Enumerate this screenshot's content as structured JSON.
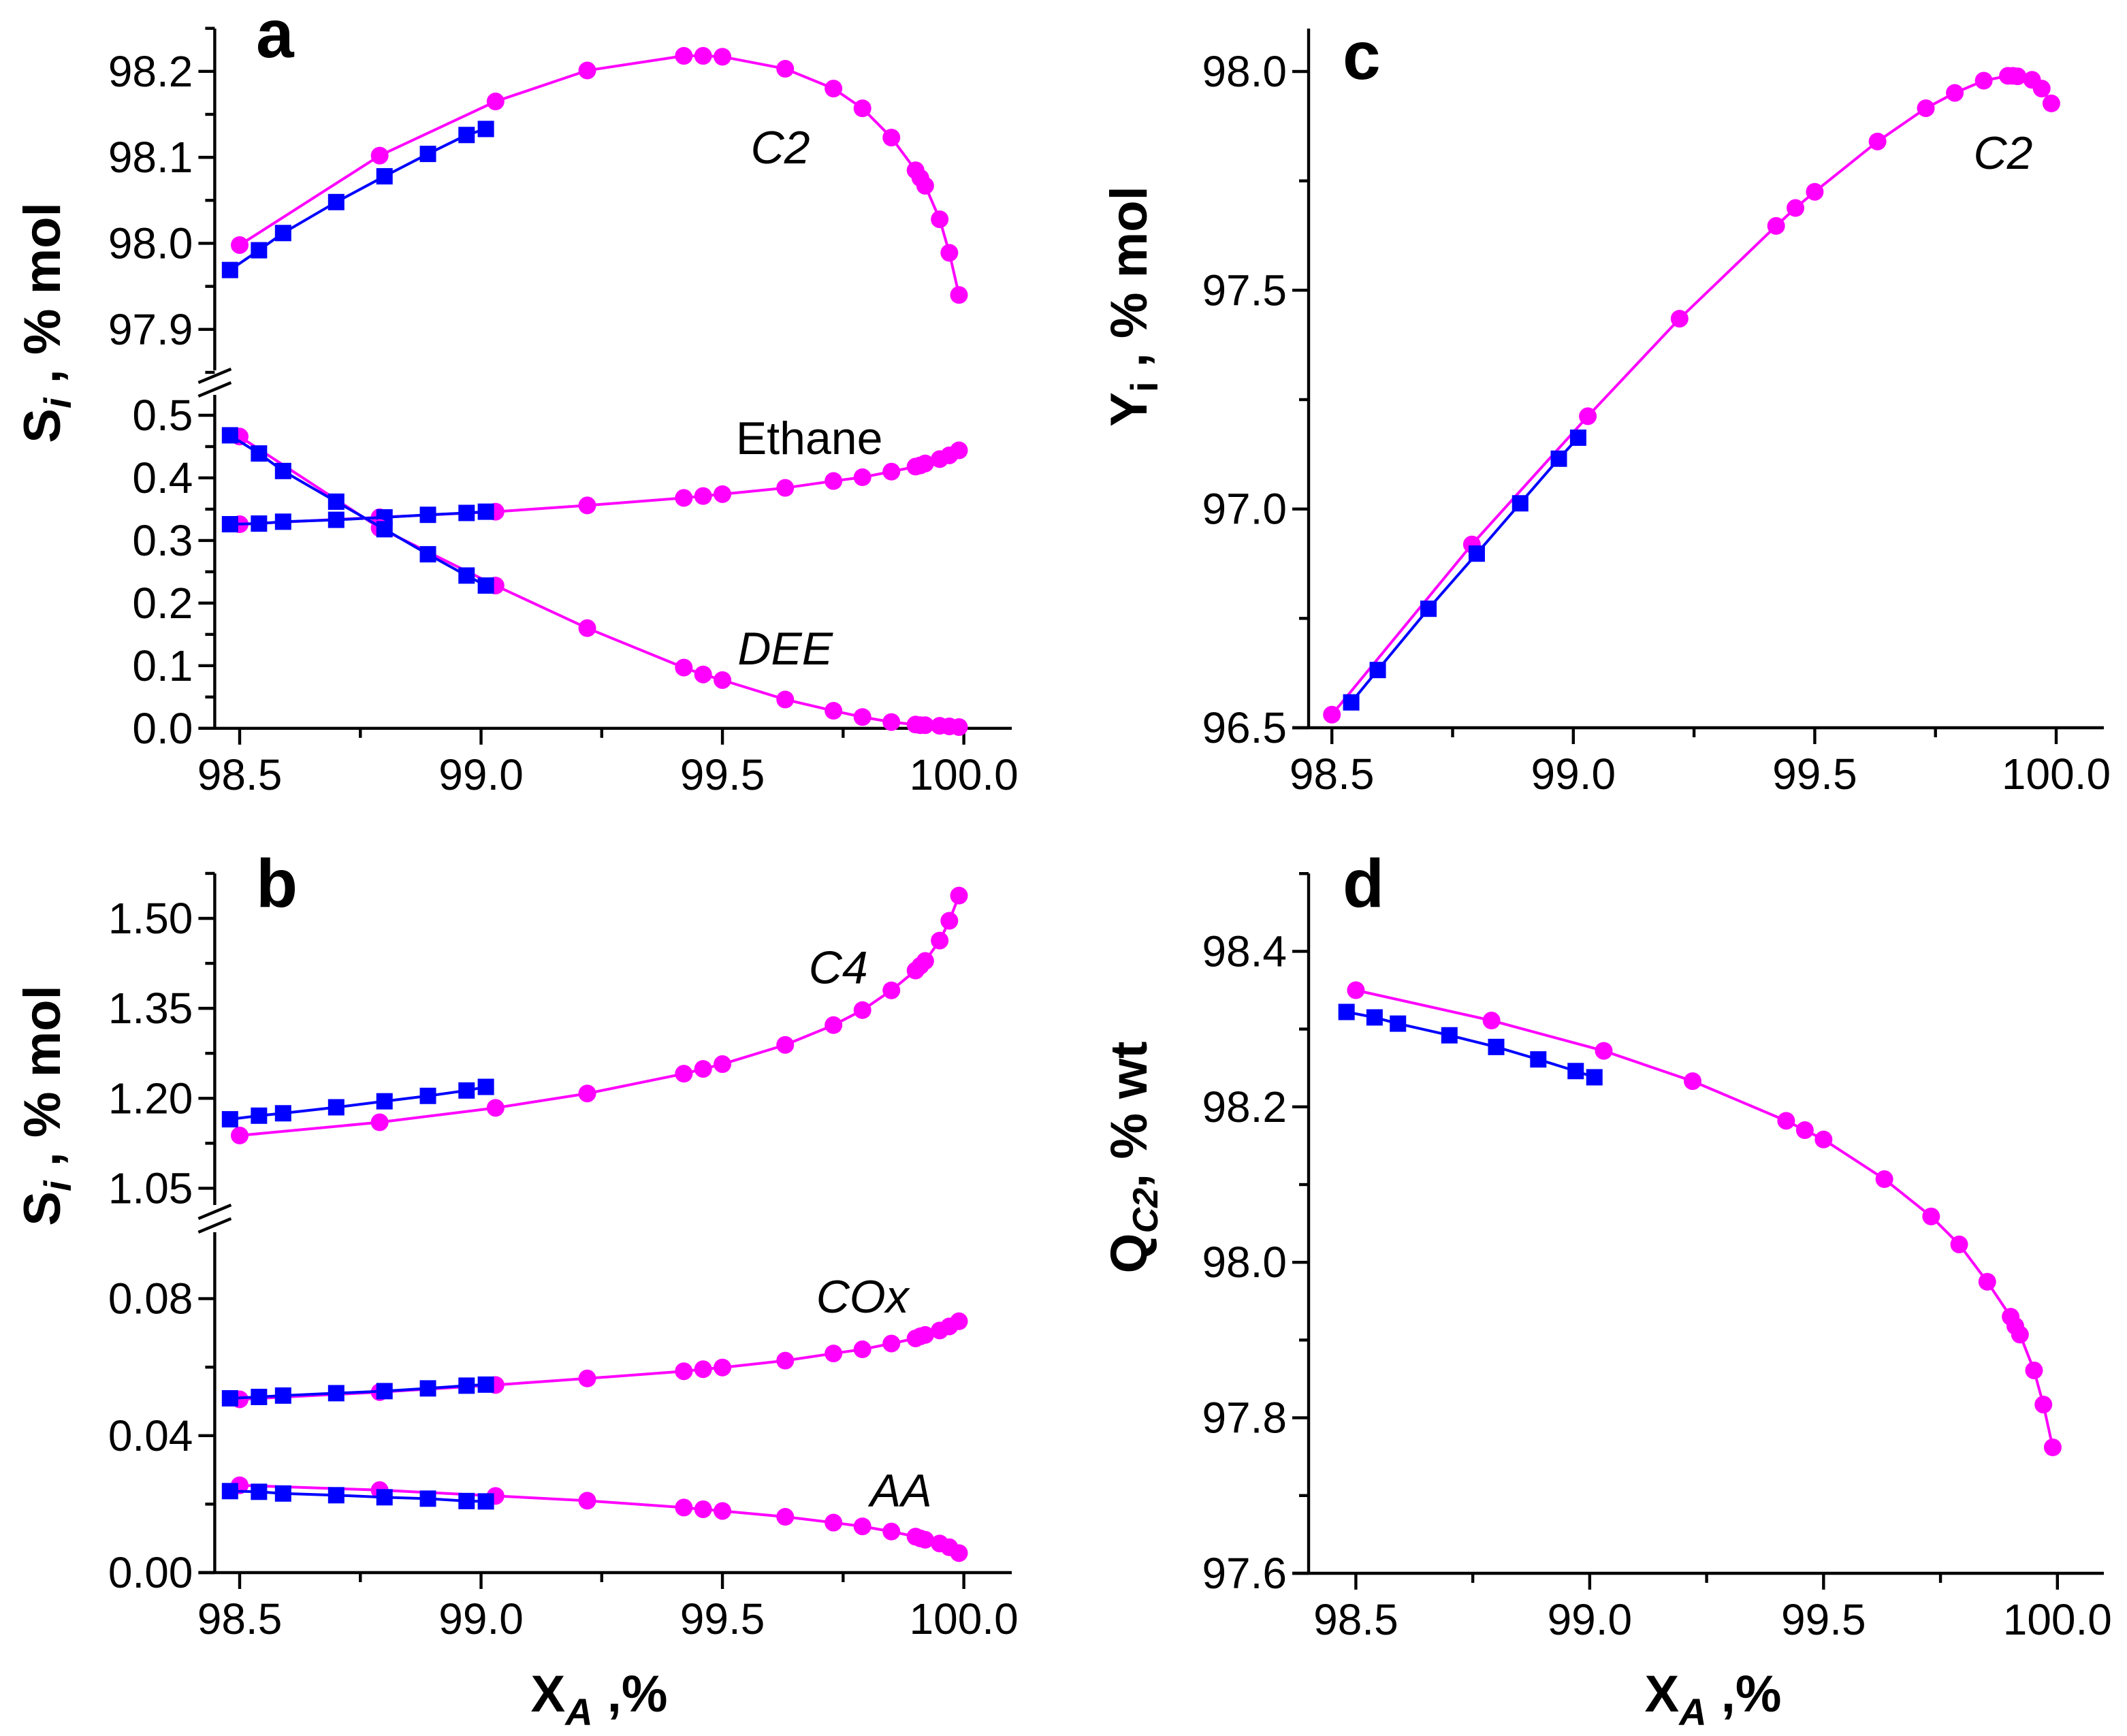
{
  "figure": {
    "panel_letters": [
      "a",
      "b",
      "c",
      "d"
    ],
    "ylabel_a": {
      "main": "S",
      "sub": "i",
      "rest": " , % mol"
    },
    "ylabel_b": {
      "main": "S",
      "sub": "i",
      "rest": " , % mol"
    },
    "ylabel_c": {
      "main": "Y",
      "sub": "i",
      "rest": " , % mol"
    },
    "ylabel_d": {
      "main": "Q",
      "sub": "C2",
      "rest": ", % wt"
    },
    "xlabel": {
      "main": "X",
      "sub": "A",
      "rest": " ,%"
    }
  },
  "colors": {
    "magenta": "#FF00FF",
    "blue": "#0000FF"
  },
  "chart_data": [
    {
      "panel": "a",
      "type": "line",
      "xlim": [
        98.45,
        100.05
      ],
      "xticks": [
        {
          "v": 98.5,
          "label": "98.5"
        },
        {
          "v": 99.0,
          "label": "99.0"
        },
        {
          "v": 99.5,
          "label": "99.5"
        },
        {
          "v": 100.0,
          "label": "100.0"
        }
      ],
      "xminor": [
        98.75,
        99.25,
        99.75
      ],
      "sections": [
        {
          "ylim": [
            97.855,
            98.25
          ],
          "yticks": [
            {
              "v": 98.2,
              "label": "98.2"
            },
            {
              "v": 98.1,
              "label": "98.1"
            },
            {
              "v": 98.0,
              "label": "98.0"
            },
            {
              "v": 97.9,
              "label": "97.9"
            }
          ],
          "yminor": [
            98.25,
            98.15,
            98.05,
            97.95,
            97.85
          ]
        },
        {
          "ylim": [
            0,
            0.533
          ],
          "yticks": [
            {
              "v": 0.5,
              "label": "0.5"
            },
            {
              "v": 0.4,
              "label": "0.4"
            },
            {
              "v": 0.3,
              "label": "0.3"
            },
            {
              "v": 0.2,
              "label": "0.2"
            },
            {
              "v": 0.1,
              "label": "0.1"
            },
            {
              "v": 0.0,
              "label": "0.0"
            }
          ],
          "yminor": [
            0.45,
            0.35,
            0.25,
            0.15,
            0.05
          ]
        }
      ],
      "series": [
        {
          "name": "C2 (circles)",
          "section": 0,
          "color": "#FF00FF",
          "marker": "circle",
          "x": [
            98.5,
            98.79,
            99.03,
            99.22,
            99.42,
            99.46,
            99.5,
            99.63,
            99.73,
            99.79,
            99.85,
            99.9,
            99.91,
            99.92,
            99.95,
            99.97,
            99.99
          ],
          "y": [
            97.998,
            98.102,
            98.165,
            98.201,
            98.218,
            98.218,
            98.217,
            98.203,
            98.18,
            98.157,
            98.123,
            98.085,
            98.076,
            98.067,
            98.028,
            97.989,
            97.94
          ]
        },
        {
          "name": "C2 (squares)",
          "section": 0,
          "color": "#0000FF",
          "marker": "square",
          "x": [
            98.48,
            98.54,
            98.59,
            98.7,
            98.8,
            98.89,
            98.97,
            99.01
          ],
          "y": [
            97.969,
            97.992,
            98.012,
            98.048,
            98.078,
            98.104,
            98.126,
            98.133
          ]
        },
        {
          "name": "Ethane (circles)",
          "section": 1,
          "color": "#FF00FF",
          "marker": "circle",
          "x": [
            98.5,
            98.79,
            99.03,
            99.22,
            99.42,
            99.46,
            99.5,
            99.63,
            99.73,
            99.79,
            99.85,
            99.9,
            99.91,
            99.92,
            99.95,
            99.97,
            99.99
          ],
          "y": [
            0.326,
            0.337,
            0.346,
            0.356,
            0.368,
            0.371,
            0.374,
            0.384,
            0.395,
            0.401,
            0.41,
            0.418,
            0.42,
            0.423,
            0.43,
            0.436,
            0.444
          ]
        },
        {
          "name": "Ethane (squares)",
          "section": 1,
          "color": "#0000FF",
          "marker": "square",
          "x": [
            98.48,
            98.54,
            98.59,
            98.7,
            98.8,
            98.89,
            98.97,
            99.01
          ],
          "y": [
            0.326,
            0.327,
            0.33,
            0.333,
            0.337,
            0.341,
            0.344,
            0.346
          ]
        },
        {
          "name": "DEE (circles)",
          "section": 1,
          "color": "#FF00FF",
          "marker": "circle",
          "x": [
            98.5,
            98.79,
            99.03,
            99.22,
            99.42,
            99.46,
            99.5,
            99.63,
            99.73,
            99.79,
            99.85,
            99.9,
            99.91,
            99.92,
            99.95,
            99.97,
            99.99
          ],
          "y": [
            0.466,
            0.32,
            0.228,
            0.16,
            0.097,
            0.086,
            0.077,
            0.046,
            0.028,
            0.018,
            0.01,
            0.006,
            0.005,
            0.005,
            0.004,
            0.003,
            0.002
          ]
        },
        {
          "name": "DEE (squares)",
          "section": 1,
          "color": "#0000FF",
          "marker": "square",
          "x": [
            98.48,
            98.54,
            98.59,
            98.7,
            98.8,
            98.89,
            98.97,
            99.01
          ],
          "y": [
            0.468,
            0.439,
            0.411,
            0.362,
            0.318,
            0.278,
            0.244,
            0.228
          ]
        }
      ],
      "annotations": [
        {
          "text": "C2",
          "italic": true,
          "section": 0,
          "x": 99.62,
          "y": 98.112
        },
        {
          "text": "Ethane",
          "italic": false,
          "section": 1,
          "x": 99.68,
          "y": 0.464
        },
        {
          "text": "DEE",
          "italic": true,
          "section": 1,
          "x": 99.63,
          "y": 0.128
        }
      ]
    },
    {
      "panel": "b",
      "type": "line",
      "xlim": [
        98.45,
        100.05
      ],
      "xticks": [
        {
          "v": 98.5,
          "label": "98.5"
        },
        {
          "v": 99.0,
          "label": "99.0"
        },
        {
          "v": 99.5,
          "label": "99.5"
        },
        {
          "v": 100.0,
          "label": "100.0"
        }
      ],
      "xminor": [
        98.75,
        99.25,
        99.75
      ],
      "sections": [
        {
          "ylim": [
            1.022,
            1.575
          ],
          "yticks": [
            {
              "v": 1.5,
              "label": "1.50"
            },
            {
              "v": 1.35,
              "label": "1.35"
            },
            {
              "v": 1.2,
              "label": "1.20"
            },
            {
              "v": 1.05,
              "label": "1.05"
            }
          ],
          "yminor": [
            1.575,
            1.425,
            1.275,
            1.125
          ]
        },
        {
          "ylim": [
            0,
            0.099
          ],
          "yticks": [
            {
              "v": 0.08,
              "label": "0.08"
            },
            {
              "v": 0.04,
              "label": "0.04"
            },
            {
              "v": 0.0,
              "label": "0.00"
            }
          ],
          "yminor": [
            0.06,
            0.02
          ]
        }
      ],
      "series": [
        {
          "name": "C4 (circles)",
          "section": 0,
          "color": "#FF00FF",
          "marker": "circle",
          "x": [
            98.5,
            98.79,
            99.03,
            99.22,
            99.42,
            99.46,
            99.5,
            99.63,
            99.73,
            99.79,
            99.85,
            99.9,
            99.91,
            99.92,
            99.95,
            99.97,
            99.99
          ],
          "y": [
            1.138,
            1.16,
            1.184,
            1.208,
            1.241,
            1.249,
            1.257,
            1.289,
            1.322,
            1.347,
            1.38,
            1.413,
            1.421,
            1.429,
            1.463,
            1.496,
            1.538
          ]
        },
        {
          "name": "C4 (squares)",
          "section": 0,
          "color": "#0000FF",
          "marker": "square",
          "x": [
            98.48,
            98.54,
            98.59,
            98.7,
            98.8,
            98.89,
            98.97,
            99.01
          ],
          "y": [
            1.165,
            1.171,
            1.175,
            1.185,
            1.195,
            1.204,
            1.213,
            1.219
          ]
        },
        {
          "name": "COx (circles)",
          "section": 1,
          "color": "#FF00FF",
          "marker": "circle",
          "x": [
            98.5,
            98.79,
            99.03,
            99.22,
            99.42,
            99.46,
            99.5,
            99.63,
            99.73,
            99.79,
            99.85,
            99.9,
            99.91,
            99.92,
            99.95,
            99.97,
            99.99
          ],
          "y": [
            0.0506,
            0.0527,
            0.0548,
            0.0567,
            0.0588,
            0.0594,
            0.0599,
            0.0619,
            0.064,
            0.0652,
            0.0669,
            0.0684,
            0.069,
            0.0694,
            0.0707,
            0.0719,
            0.0734
          ]
        },
        {
          "name": "COx (squares)",
          "section": 1,
          "color": "#0000FF",
          "marker": "square",
          "x": [
            98.48,
            98.54,
            98.59,
            98.7,
            98.8,
            98.89,
            98.97,
            99.01
          ],
          "y": [
            0.0509,
            0.0513,
            0.0517,
            0.0524,
            0.053,
            0.0538,
            0.0546,
            0.0549
          ]
        },
        {
          "name": "AA (circles)",
          "section": 1,
          "color": "#FF00FF",
          "marker": "circle",
          "x": [
            98.5,
            98.79,
            99.03,
            99.22,
            99.42,
            99.46,
            99.5,
            99.63,
            99.73,
            99.79,
            99.85,
            99.9,
            99.91,
            99.92,
            99.95,
            99.97,
            99.99
          ],
          "y": [
            0.0255,
            0.0241,
            0.0224,
            0.021,
            0.019,
            0.0185,
            0.018,
            0.0163,
            0.0146,
            0.0135,
            0.012,
            0.0105,
            0.01,
            0.0096,
            0.0085,
            0.0074,
            0.0057
          ]
        },
        {
          "name": "AA (squares)",
          "section": 1,
          "color": "#0000FF",
          "marker": "square",
          "x": [
            98.48,
            98.54,
            98.59,
            98.7,
            98.8,
            98.89,
            98.97,
            99.01
          ],
          "y": [
            0.0238,
            0.0236,
            0.0231,
            0.0226,
            0.022,
            0.0216,
            0.0209,
            0.0208
          ]
        }
      ],
      "annotations": [
        {
          "text": "C4",
          "italic": true,
          "section": 0,
          "x": 99.74,
          "y": 1.419
        },
        {
          "text": "COx",
          "italic": true,
          "section": 1,
          "x": 99.79,
          "y": 0.0807
        },
        {
          "text": "AA",
          "italic": true,
          "section": 1,
          "x": 99.87,
          "y": 0.0242
        }
      ]
    },
    {
      "panel": "c",
      "type": "line",
      "xlim": [
        98.45,
        100.1
      ],
      "xticks": [
        {
          "v": 98.5,
          "label": "98.5"
        },
        {
          "v": 99.0,
          "label": "99.0"
        },
        {
          "v": 99.5,
          "label": "99.5"
        },
        {
          "v": 100.0,
          "label": "100.0"
        }
      ],
      "xminor": [
        98.75,
        99.25,
        99.75
      ],
      "sections": [
        {
          "ylim": [
            96.5,
            98.1
          ],
          "yticks": [
            {
              "v": 98.0,
              "label": "98.0"
            },
            {
              "v": 97.5,
              "label": "97.5"
            },
            {
              "v": 97.0,
              "label": "97.0"
            },
            {
              "v": 96.5,
              "label": "96.5"
            }
          ],
          "yminor": [
            97.75,
            97.25,
            96.75
          ]
        }
      ],
      "series": [
        {
          "name": "C2 yield (circles)",
          "section": 0,
          "color": "#FF00FF",
          "marker": "circle",
          "x": [
            98.5,
            98.79,
            99.03,
            99.22,
            99.42,
            99.46,
            99.5,
            99.63,
            99.73,
            99.79,
            99.85,
            99.9,
            99.91,
            99.92,
            99.95,
            99.97,
            99.99
          ],
          "y": [
            96.53,
            96.919,
            97.212,
            97.435,
            97.647,
            97.688,
            97.725,
            97.84,
            97.916,
            97.951,
            97.979,
            97.99,
            97.99,
            97.989,
            97.981,
            97.961,
            97.927
          ]
        },
        {
          "name": "C2 yield (squares)",
          "section": 0,
          "color": "#0000FF",
          "marker": "square",
          "x": [
            98.54,
            98.595,
            98.7,
            98.8,
            98.89,
            98.97,
            99.01
          ],
          "y": [
            96.558,
            96.632,
            96.772,
            96.898,
            97.013,
            97.115,
            97.163
          ]
        }
      ],
      "annotations": [
        {
          "text": "C2",
          "italic": true,
          "section": 0,
          "x": 99.89,
          "y": 97.815
        }
      ]
    },
    {
      "panel": "d",
      "type": "line",
      "xlim": [
        98.4,
        100.1
      ],
      "xticks": [
        {
          "v": 98.5,
          "label": "98.5"
        },
        {
          "v": 99.0,
          "label": "99.0"
        },
        {
          "v": 99.5,
          "label": "99.5"
        },
        {
          "v": 100.0,
          "label": "100.0"
        }
      ],
      "xminor": [
        98.75,
        99.25,
        99.75
      ],
      "sections": [
        {
          "ylim": [
            97.6,
            98.5
          ],
          "yticks": [
            {
              "v": 98.4,
              "label": "98.4"
            },
            {
              "v": 98.2,
              "label": "98.2"
            },
            {
              "v": 98.0,
              "label": "98.0"
            },
            {
              "v": 97.8,
              "label": "97.8"
            },
            {
              "v": 97.6,
              "label": "97.6"
            }
          ],
          "yminor": [
            98.5,
            98.3,
            98.1,
            97.9,
            97.7
          ]
        }
      ],
      "series": [
        {
          "name": "QC2 (circles)",
          "section": 0,
          "color": "#FF00FF",
          "marker": "circle",
          "x": [
            98.5,
            98.79,
            99.03,
            99.22,
            99.42,
            99.46,
            99.5,
            99.63,
            99.73,
            99.79,
            99.85,
            99.9,
            99.91,
            99.92,
            99.95,
            99.97,
            99.99
          ],
          "y": [
            98.35,
            98.311,
            98.272,
            98.233,
            98.182,
            98.17,
            98.158,
            98.107,
            98.059,
            98.023,
            97.975,
            97.93,
            97.918,
            97.907,
            97.861,
            97.817,
            97.762
          ]
        },
        {
          "name": "QC2 (squares)",
          "section": 0,
          "color": "#0000FF",
          "marker": "square",
          "x": [
            98.48,
            98.54,
            98.59,
            98.7,
            98.8,
            98.89,
            98.97,
            99.01
          ],
          "y": [
            98.322,
            98.315,
            98.307,
            98.292,
            98.277,
            98.261,
            98.246,
            98.238
          ]
        }
      ],
      "annotations": []
    }
  ]
}
